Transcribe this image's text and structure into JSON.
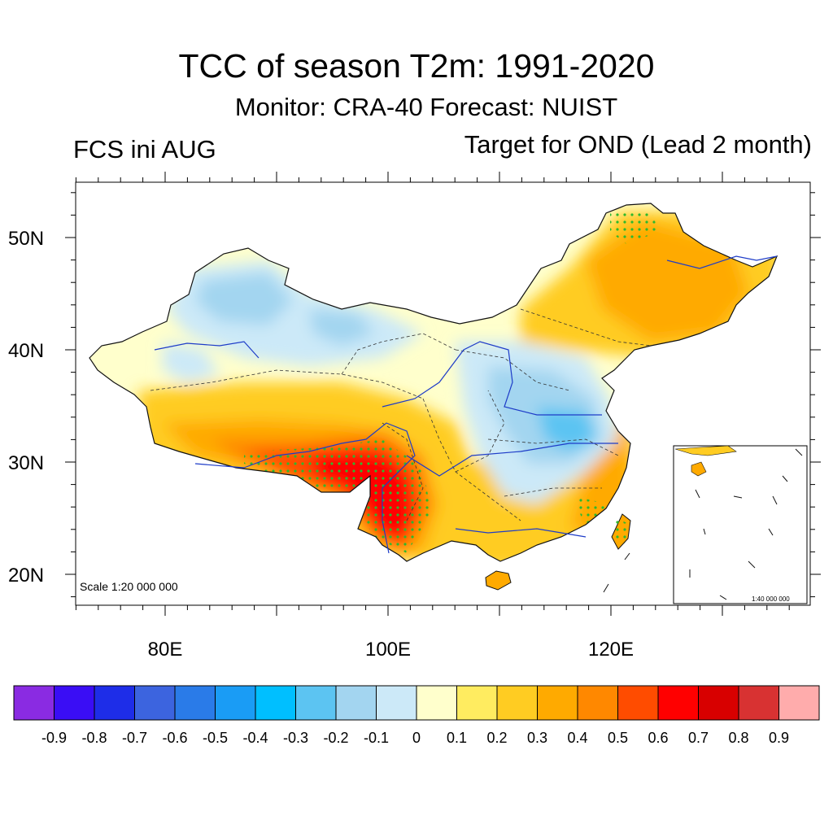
{
  "header": {
    "title": "TCC of season T2m: 1991-2020",
    "subtitle": "Monitor: CRA-40   Forecast: NUIST",
    "left_label": "FCS ini AUG",
    "right_label": "Target for OND (Lead 2 month)"
  },
  "map": {
    "lat_ticks": [
      "50N",
      "40N",
      "30N",
      "20N"
    ],
    "lon_ticks": [
      "80E",
      "100E",
      "120E"
    ],
    "scale_label": "Scale 1:20 000 000",
    "inset_scale_label": "1:40 000 000",
    "stipple_color": "#2db82d",
    "region_values": {
      "northwest_xinjiang": -0.2,
      "north_china_plain": -0.2,
      "southwest_yunnan_sichuan": 0.7,
      "tibet_south": 0.5,
      "northeast": 0.4,
      "southeast_coast": 0.4,
      "south_china": 0.3
    }
  },
  "colorbar": {
    "labels": [
      "-0.9",
      "-0.8",
      "-0.7",
      "-0.6",
      "-0.5",
      "-0.4",
      "-0.3",
      "-0.2",
      "-0.1",
      "0",
      "0.1",
      "0.2",
      "0.3",
      "0.4",
      "0.5",
      "0.6",
      "0.7",
      "0.8",
      "0.9"
    ],
    "colors": [
      "#8a2be2",
      "#3a0df5",
      "#1e2de8",
      "#3c64df",
      "#2a7be8",
      "#1a9cf5",
      "#00bfff",
      "#5cc4f2",
      "#a3d5f0",
      "#cce9f8",
      "#ffffcc",
      "#ffec60",
      "#ffcc22",
      "#ffaa00",
      "#ff8800",
      "#ff4c00",
      "#ff0000",
      "#d80000",
      "#d83232",
      "#ffacac"
    ]
  }
}
